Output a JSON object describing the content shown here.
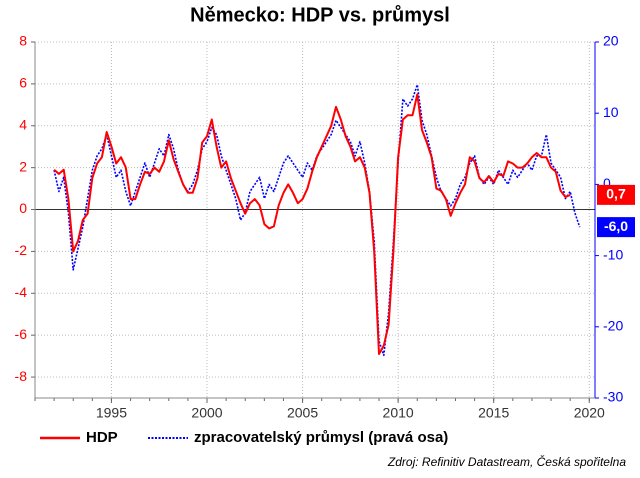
{
  "chart_data": {
    "type": "line",
    "title": "Německo: HDP vs. průmysl",
    "source": "Zdroj: Refinitiv Datastream, Česká spořitelna",
    "xlim": [
      1991,
      2020.3
    ],
    "xticks": [
      1995,
      2000,
      2005,
      2010,
      2015,
      2020
    ],
    "ylim": [
      -9,
      8
    ],
    "yticks": [
      -8,
      -6,
      -4,
      -2,
      0,
      2,
      4,
      6,
      8
    ],
    "y2lim": [
      -30,
      20
    ],
    "y2ticks": [
      -30,
      -20,
      -10,
      0,
      10,
      20
    ],
    "grid": true,
    "series": [
      {
        "name": "HDP",
        "color": "#ff0000",
        "axis": "y",
        "x": [
          1992,
          1992.25,
          1992.5,
          1992.75,
          1993,
          1993.25,
          1993.5,
          1993.75,
          1994,
          1994.25,
          1994.5,
          1994.75,
          1995,
          1995.25,
          1995.5,
          1995.75,
          1996,
          1996.25,
          1996.5,
          1996.75,
          1997,
          1997.25,
          1997.5,
          1997.75,
          1998,
          1998.25,
          1998.5,
          1998.75,
          1999,
          1999.25,
          1999.5,
          1999.75,
          2000,
          2000.25,
          2000.5,
          2000.75,
          2001,
          2001.25,
          2001.5,
          2001.75,
          2002,
          2002.25,
          2002.5,
          2002.75,
          2003,
          2003.25,
          2003.5,
          2003.75,
          2004,
          2004.25,
          2004.5,
          2004.75,
          2005,
          2005.25,
          2005.5,
          2005.75,
          2006,
          2006.25,
          2006.5,
          2006.75,
          2007,
          2007.25,
          2007.5,
          2007.75,
          2008,
          2008.25,
          2008.5,
          2008.75,
          2009,
          2009.25,
          2009.5,
          2009.75,
          2010,
          2010.25,
          2010.5,
          2010.75,
          2011,
          2011.25,
          2011.5,
          2011.75,
          2012,
          2012.25,
          2012.5,
          2012.75,
          2013,
          2013.25,
          2013.5,
          2013.75,
          2014,
          2014.25,
          2014.5,
          2014.75,
          2015,
          2015.25,
          2015.5,
          2015.75,
          2016,
          2016.25,
          2016.5,
          2016.75,
          2017,
          2017.25,
          2017.5,
          2017.75,
          2018,
          2018.25,
          2018.5,
          2018.75,
          2019
        ],
        "values": [
          1.9,
          1.7,
          1.9,
          0.5,
          -2.0,
          -1.5,
          -0.5,
          -0.2,
          1.5,
          2.2,
          2.5,
          3.7,
          3.0,
          2.2,
          2.5,
          2.0,
          0.5,
          0.5,
          1.2,
          1.8,
          1.7,
          2.0,
          1.8,
          2.3,
          3.3,
          2.4,
          1.8,
          1.2,
          0.8,
          0.8,
          1.5,
          3.2,
          3.5,
          4.3,
          3.0,
          2.0,
          2.3,
          1.5,
          0.9,
          0.3,
          -0.2,
          0.3,
          0.5,
          0.2,
          -0.7,
          -0.9,
          -0.8,
          0.2,
          0.8,
          1.2,
          0.8,
          0.3,
          0.5,
          1.0,
          1.8,
          2.5,
          3.0,
          3.5,
          4.0,
          4.9,
          4.3,
          3.5,
          3.0,
          2.3,
          2.5,
          2.0,
          0.8,
          -2.0,
          -6.9,
          -6.5,
          -5.5,
          -2.0,
          2.5,
          4.3,
          4.5,
          4.5,
          5.5,
          3.8,
          3.2,
          2.5,
          1.0,
          0.9,
          0.5,
          -0.3,
          0.3,
          0.8,
          1.2,
          2.5,
          2.3,
          1.5,
          1.3,
          1.6,
          1.3,
          1.7,
          1.6,
          2.3,
          2.2,
          2.0,
          2.0,
          2.2,
          2.5,
          2.7,
          2.5,
          2.5,
          2.0,
          1.8,
          0.9,
          0.6,
          0.7
        ]
      },
      {
        "name": "zpracovatelský průmysl (pravá osa)",
        "color": "#0000ff",
        "axis": "y2",
        "x": [
          1992,
          1992.25,
          1992.5,
          1992.75,
          1993,
          1993.25,
          1993.5,
          1993.75,
          1994,
          1994.25,
          1994.5,
          1994.75,
          1995,
          1995.25,
          1995.5,
          1995.75,
          1996,
          1996.25,
          1996.5,
          1996.75,
          1997,
          1997.25,
          1997.5,
          1997.75,
          1998,
          1998.25,
          1998.5,
          1998.75,
          1999,
          1999.25,
          1999.5,
          1999.75,
          2000,
          2000.25,
          2000.5,
          2000.75,
          2001,
          2001.25,
          2001.5,
          2001.75,
          2002,
          2002.25,
          2002.5,
          2002.75,
          2003,
          2003.25,
          2003.5,
          2003.75,
          2004,
          2004.25,
          2004.5,
          2004.75,
          2005,
          2005.25,
          2005.5,
          2005.75,
          2006,
          2006.25,
          2006.5,
          2006.75,
          2007,
          2007.25,
          2007.5,
          2007.75,
          2008,
          2008.25,
          2008.5,
          2008.75,
          2009,
          2009.25,
          2009.5,
          2009.75,
          2010,
          2010.25,
          2010.5,
          2010.75,
          2011,
          2011.25,
          2011.5,
          2011.75,
          2012,
          2012.25,
          2012.5,
          2012.75,
          2013,
          2013.25,
          2013.5,
          2013.75,
          2014,
          2014.25,
          2014.5,
          2014.75,
          2015,
          2015.25,
          2015.5,
          2015.75,
          2016,
          2016.25,
          2016.5,
          2016.75,
          2017,
          2017.25,
          2017.5,
          2017.75,
          2018,
          2018.25,
          2018.5,
          2018.75,
          2019,
          2019.25,
          2019.5
        ],
        "values": [
          2,
          -1,
          1,
          -4,
          -12,
          -9,
          -6,
          -2,
          2,
          4,
          5,
          7,
          4,
          1,
          2,
          -1,
          -3,
          -1,
          1,
          3,
          1,
          3,
          5,
          4,
          7,
          5,
          2,
          0,
          -1,
          0,
          2,
          5,
          6,
          8,
          7,
          4,
          2,
          0,
          -2,
          -5,
          -4,
          -1,
          0,
          1,
          -2,
          0,
          -1,
          1,
          3,
          4,
          3,
          2,
          1,
          3,
          2,
          4,
          5,
          6,
          7,
          9,
          8,
          7,
          6,
          4,
          6,
          3,
          -1,
          -8,
          -22,
          -24,
          -18,
          -8,
          3,
          12,
          11,
          12,
          14,
          9,
          7,
          4,
          1,
          -1,
          -2,
          -3,
          -2,
          0,
          1,
          3,
          4,
          1,
          0,
          1,
          0,
          2,
          1,
          0,
          2,
          1,
          2,
          3,
          2,
          4,
          4,
          7,
          3,
          2,
          1,
          -2,
          -1,
          -4,
          -6
        ]
      }
    ],
    "annotations": [
      {
        "text": "0,7",
        "value": 0.7,
        "axis": "y",
        "color": "#ff0000"
      },
      {
        "text": "-6,0",
        "value": -6,
        "axis": "y2",
        "color": "#0000ff"
      }
    ]
  }
}
